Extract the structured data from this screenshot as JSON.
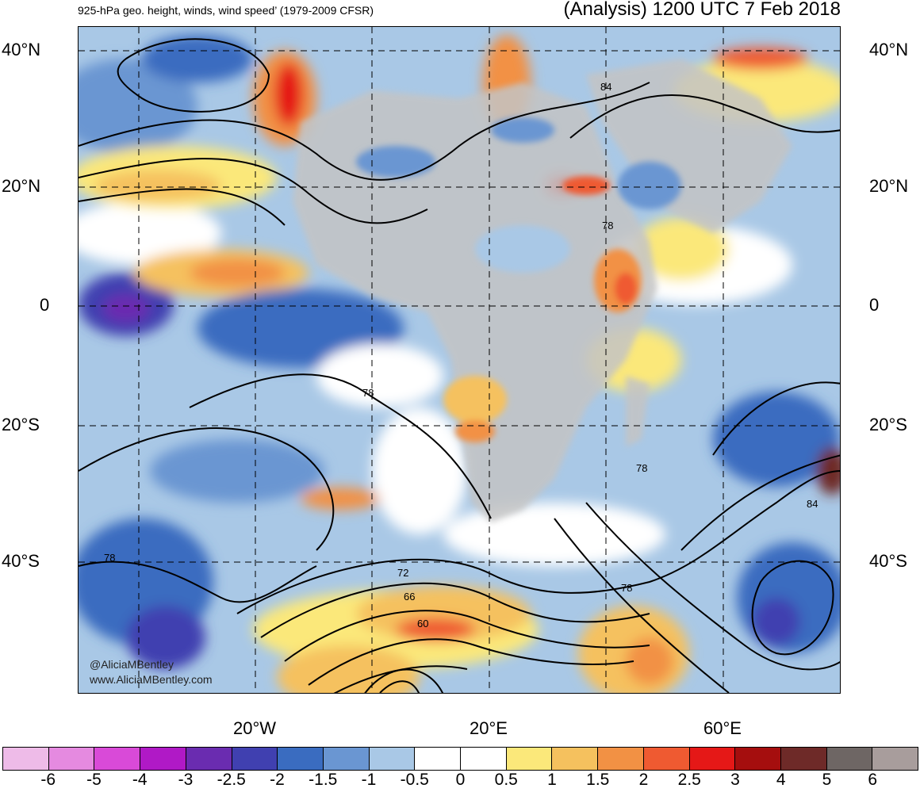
{
  "header": {
    "title_left": "925-hPa geo. height, winds, wind speed’ (1979-2009 CFSR)",
    "title_right": "(Analysis) 1200 UTC 7 Feb 2018"
  },
  "map": {
    "lat_labels": [
      "40°N",
      "20°N",
      "0",
      "20°S",
      "40°S"
    ],
    "lon_labels": [
      "20°W",
      "20°E",
      "60°E"
    ],
    "contour_labels": [
      "84",
      "78",
      "78",
      "78",
      "84",
      "78",
      "72",
      "66",
      "60",
      "78"
    ],
    "watermark": [
      "@AliciaMBentley",
      "www.AliciaMBentley.com"
    ]
  },
  "colorbar": {
    "labels": [
      "-6",
      "-5",
      "-4",
      "-3",
      "-2.5",
      "-2",
      "-1.5",
      "-1",
      "-0.5",
      "0",
      "0.5",
      "1",
      "1.5",
      "2",
      "2.5",
      "3",
      "4",
      "5",
      "6"
    ],
    "colors": [
      "#eebbe8",
      "#e58ae0",
      "#d94ad8",
      "#b019c6",
      "#6a2cb0",
      "#4040b0",
      "#3a6cc0",
      "#6a96d2",
      "#a9c8e6",
      "#ffffff",
      "#ffffff",
      "#fbe87a",
      "#f5c15e",
      "#f29144",
      "#ef5a31",
      "#e51817",
      "#a50e0e",
      "#6e2a28",
      "#6e6664",
      "#a89d9c"
    ]
  }
}
